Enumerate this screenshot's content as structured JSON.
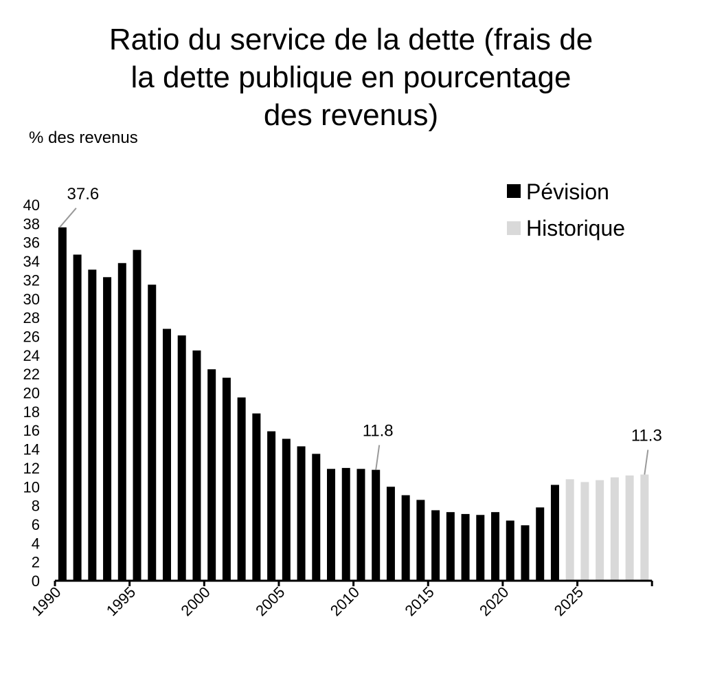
{
  "chart_data": {
    "type": "bar",
    "title_lines": [
      "Ratio du service de la dette (frais de",
      "la dette publique en pourcentage",
      "des revenus)"
    ],
    "ylabel": "% des revenus",
    "xlabel": "",
    "ylim": [
      0,
      40
    ],
    "yticks": [
      "0",
      "2",
      "4",
      "6",
      "8",
      "10",
      "12",
      "14",
      "16",
      "18",
      "20",
      "22",
      "24",
      "26",
      "28",
      "30",
      "32",
      "34",
      "36",
      "38",
      "40"
    ],
    "xticks": [
      "1990",
      "1995",
      "2000",
      "2005",
      "2010",
      "2015",
      "2020",
      "2025"
    ],
    "legend": {
      "placement": "top-right",
      "entries": [
        {
          "label": "Pévision",
          "color": "#000000"
        },
        {
          "label": "Historique",
          "color": "#d9d9d9"
        }
      ]
    },
    "categories": [
      1990,
      1991,
      1992,
      1993,
      1994,
      1995,
      1996,
      1997,
      1998,
      1999,
      2000,
      2001,
      2002,
      2003,
      2004,
      2005,
      2006,
      2007,
      2008,
      2009,
      2010,
      2011,
      2012,
      2013,
      2014,
      2015,
      2016,
      2017,
      2018,
      2019,
      2020,
      2021,
      2022,
      2023,
      2024,
      2025,
      2026,
      2027,
      2028,
      2029
    ],
    "values": [
      37.6,
      34.7,
      33.1,
      32.3,
      33.8,
      35.2,
      31.5,
      26.8,
      26.1,
      24.5,
      22.5,
      21.6,
      19.5,
      17.8,
      15.9,
      15.1,
      14.3,
      13.5,
      11.9,
      12.0,
      11.9,
      11.8,
      10.0,
      9.1,
      8.6,
      7.5,
      7.3,
      7.1,
      7.0,
      7.3,
      6.4,
      5.9,
      7.8,
      10.2,
      10.8,
      10.5,
      10.7,
      11.0,
      11.2,
      11.3
    ],
    "series_of_each": [
      "black",
      "black",
      "black",
      "black",
      "black",
      "black",
      "black",
      "black",
      "black",
      "black",
      "black",
      "black",
      "black",
      "black",
      "black",
      "black",
      "black",
      "black",
      "black",
      "black",
      "black",
      "black",
      "black",
      "black",
      "black",
      "black",
      "black",
      "black",
      "black",
      "black",
      "black",
      "black",
      "black",
      "black",
      "gray",
      "gray",
      "gray",
      "gray",
      "gray",
      "gray"
    ],
    "annotations": [
      {
        "year": 1990,
        "text": "37.6"
      },
      {
        "year": 2011,
        "text": "11.8"
      },
      {
        "year": 2029,
        "text": "11.3"
      }
    ]
  }
}
